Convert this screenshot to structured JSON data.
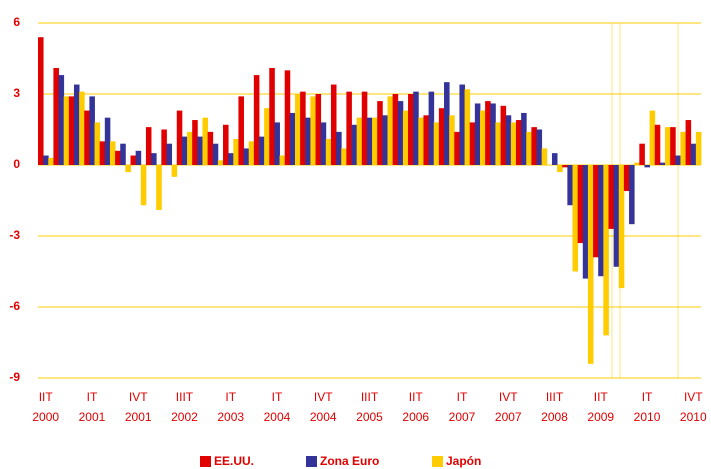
{
  "chart_data": {
    "type": "bar",
    "categories": [
      "IIT 2000",
      null,
      null,
      "IT 2001",
      null,
      null,
      "IVT 2001",
      null,
      null,
      "IIIT 2002",
      null,
      null,
      "IT 2003",
      null,
      null,
      "IT 2004",
      null,
      null,
      "IVT 2004",
      null,
      null,
      "IIIT 2005",
      null,
      null,
      "IIT 2006",
      null,
      null,
      "IT 2007",
      null,
      null,
      "IVT 2007",
      null,
      null,
      "IIIT 2008",
      null,
      null,
      "IIT 2009",
      null,
      null,
      "IT 2010",
      null,
      null,
      "IVT 2010"
    ],
    "series": [
      {
        "name": "EE.UU.",
        "color": "#e00000",
        "values": [
          5.4,
          4.1,
          2.9,
          2.3,
          1.0,
          0.6,
          0.4,
          1.6,
          1.5,
          2.3,
          1.9,
          1.4,
          1.7,
          2.9,
          3.8,
          4.1,
          4.0,
          3.1,
          3.0,
          3.4,
          3.1,
          3.1,
          2.7,
          3.0,
          3.0,
          2.1,
          2.4,
          1.4,
          1.8,
          2.7,
          2.5,
          1.9,
          1.6,
          0.0,
          -0.1,
          -3.3,
          -3.9,
          -2.7,
          -1.1,
          0.9,
          1.7,
          1.6,
          1.9
        ]
      },
      {
        "name": "Zona Euro",
        "color": "#333399",
        "values": [
          0.4,
          3.8,
          3.4,
          2.9,
          2.0,
          0.9,
          0.6,
          0.5,
          0.9,
          1.2,
          1.2,
          0.9,
          0.5,
          0.7,
          1.2,
          1.8,
          2.2,
          2.0,
          1.8,
          1.4,
          1.7,
          2.0,
          2.1,
          2.7,
          3.1,
          3.1,
          3.5,
          3.4,
          2.6,
          2.6,
          2.1,
          2.2,
          1.5,
          0.5,
          -1.7,
          -4.8,
          -4.7,
          -4.3,
          -2.5,
          -0.1,
          0.1,
          0.4,
          0.9
        ]
      },
      {
        "name": "Japón",
        "color": "#ffcc00",
        "values": [
          0.3,
          2.9,
          3.1,
          1.8,
          1.0,
          -0.3,
          -1.7,
          -1.9,
          -0.5,
          1.4,
          2.0,
          0.2,
          1.1,
          1.0,
          2.4,
          0.4,
          3.0,
          2.9,
          1.1,
          0.7,
          2.0,
          2.0,
          2.9,
          2.3,
          2.0,
          1.8,
          2.1,
          3.2,
          2.3,
          1.8,
          1.8,
          1.4,
          0.7,
          -0.3,
          -4.5,
          -8.4,
          -7.2,
          -5.2,
          0.1,
          2.3,
          1.6,
          1.4,
          1.4
        ]
      }
    ],
    "ylim": [
      -9,
      6
    ],
    "yticks": [
      6,
      3,
      0,
      -3,
      -6,
      -9
    ],
    "grid": true,
    "grid_color": "#ffcc00",
    "legend": "bottom"
  }
}
